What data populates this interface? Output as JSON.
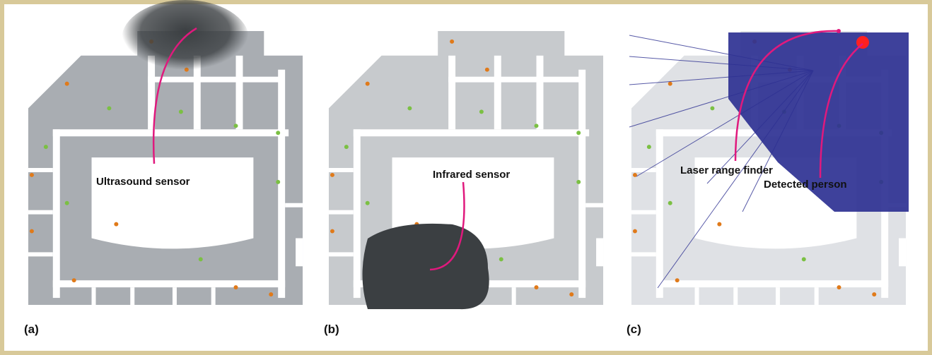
{
  "panels": [
    {
      "label": "(a)",
      "annotation": "Ultrasound sensor"
    },
    {
      "label": "(b)",
      "annotation": "Infrared sensor"
    },
    {
      "label": "(c)",
      "annotations": [
        "Laser range finder",
        "Detected person"
      ]
    }
  ]
}
